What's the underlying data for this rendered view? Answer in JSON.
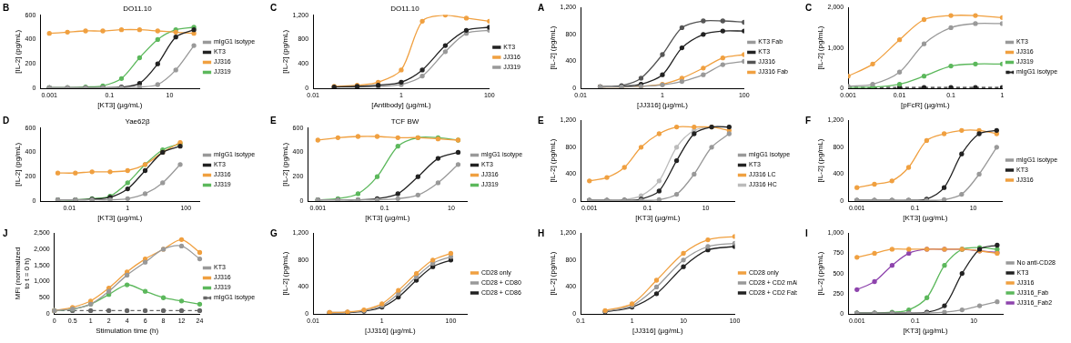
{
  "chart_data": [
    {
      "panel": "B",
      "type": "line",
      "title": "DO11.10",
      "log": "x",
      "grid": false,
      "legend": "right",
      "x_label": "[KT3] (µg/mL)",
      "y_label": "[IL-2] (pg/mL)",
      "x": [
        0.001,
        0.004,
        0.016,
        0.06,
        0.25,
        1,
        4,
        16,
        64
      ],
      "xlim": [
        0.0005,
        100
      ],
      "xticks": [
        0.001,
        0.1,
        10
      ],
      "ylim": [
        0,
        600
      ],
      "yticks": [
        0,
        200,
        400,
        600
      ],
      "series": [
        {
          "name": "mIgG1 isotype",
          "color": "#999999",
          "values": [
            5,
            5,
            5,
            5,
            5,
            10,
            30,
            150,
            350
          ]
        },
        {
          "name": "KT3",
          "color": "#222222",
          "values": [
            5,
            5,
            5,
            5,
            10,
            40,
            200,
            420,
            480
          ]
        },
        {
          "name": "JJ316",
          "color": "#f0a040",
          "values": [
            450,
            460,
            470,
            470,
            480,
            480,
            470,
            460,
            450
          ]
        },
        {
          "name": "JJ319",
          "color": "#5cb85c",
          "values": [
            5,
            5,
            10,
            20,
            80,
            250,
            400,
            480,
            500
          ]
        }
      ]
    },
    {
      "panel": "C",
      "type": "line",
      "title": "DO11.10",
      "log": "x",
      "grid": false,
      "legend": "right",
      "x_label": "[Antibody] (µg/mL)",
      "y_label": "[IL-2] (pg/mL)",
      "x": [
        0.03,
        0.1,
        0.3,
        1,
        3,
        10,
        30,
        100
      ],
      "xlim": [
        0.01,
        100
      ],
      "xticks": [
        0.01,
        1,
        100
      ],
      "ylim": [
        0,
        1200
      ],
      "yticks": [
        0,
        400,
        800,
        1200
      ],
      "series": [
        {
          "name": "KT3",
          "color": "#222222",
          "values": [
            20,
            30,
            50,
            100,
            300,
            700,
            950,
            1000
          ]
        },
        {
          "name": "JJ316",
          "color": "#f0a040",
          "values": [
            30,
            50,
            100,
            300,
            1100,
            1200,
            1150,
            1100
          ]
        },
        {
          "name": "JJ319",
          "color": "#999999",
          "values": [
            20,
            20,
            30,
            60,
            200,
            600,
            900,
            950
          ]
        }
      ]
    },
    {
      "panel": "A",
      "type": "line",
      "log": "x",
      "grid": false,
      "legend": "right",
      "x_label": "[JJ316] (µg/mL)",
      "y_label": "[IL-2] (pg/mL)",
      "x": [
        0.03,
        0.1,
        0.3,
        1,
        3,
        10,
        30,
        100
      ],
      "xlim": [
        0.01,
        100
      ],
      "xticks": [
        0.01,
        1,
        100
      ],
      "ylim": [
        0,
        1200
      ],
      "yticks": [
        0,
        400,
        800,
        1200
      ],
      "series": [
        {
          "name": "KT3 Fab",
          "color": "#999999",
          "values": [
            20,
            20,
            30,
            50,
            100,
            200,
            350,
            400
          ]
        },
        {
          "name": "KT3",
          "color": "#222222",
          "values": [
            20,
            30,
            60,
            200,
            600,
            800,
            850,
            850
          ]
        },
        {
          "name": "JJ316",
          "color": "#555555",
          "values": [
            20,
            40,
            150,
            500,
            900,
            1000,
            1000,
            980
          ]
        },
        {
          "name": "JJ316 Fab",
          "color": "#f0a040",
          "values": [
            20,
            20,
            30,
            60,
            150,
            300,
            450,
            500
          ]
        }
      ]
    },
    {
      "panel": "C",
      "type": "line",
      "log": "x",
      "grid": false,
      "legend": "right",
      "x_label": "[pFcR] (µg/mL)",
      "y_label": "[IL-2] (pg/mL)",
      "x": [
        0.001,
        0.003,
        0.01,
        0.03,
        0.1,
        0.3,
        1
      ],
      "xlim": [
        0.001,
        1
      ],
      "xticks": [
        0.001,
        0.01,
        0.1,
        1
      ],
      "ylim": [
        0,
        2000
      ],
      "yticks": [
        0,
        1000,
        2000
      ],
      "series": [
        {
          "name": "KT3",
          "color": "#999999",
          "values": [
            50,
            100,
            400,
            1100,
            1500,
            1600,
            1600
          ]
        },
        {
          "name": "JJ316",
          "color": "#f0a040",
          "values": [
            300,
            600,
            1200,
            1700,
            1800,
            1800,
            1750
          ]
        },
        {
          "name": "JJ319",
          "color": "#5cb85c",
          "values": [
            20,
            30,
            100,
            300,
            550,
            600,
            600
          ]
        },
        {
          "name": "mIgG1 isotype",
          "color": "#222222",
          "line_style": "dashed",
          "values": [
            20,
            20,
            20,
            20,
            20,
            20,
            20
          ]
        }
      ]
    },
    {
      "panel": "D",
      "type": "line",
      "title": "Yae62β",
      "log": "x",
      "grid": false,
      "legend": "right",
      "x_label": "[KT3] (µg/mL)",
      "y_label": "[IL-2] (pg/mL)",
      "x": [
        0.004,
        0.016,
        0.06,
        0.25,
        1,
        4,
        16,
        64
      ],
      "xlim": [
        0.001,
        300
      ],
      "xticks": [
        0.01,
        1,
        100
      ],
      "ylim": [
        0,
        600
      ],
      "yticks": [
        0,
        200,
        400,
        600
      ],
      "series": [
        {
          "name": "mIgG1 isotype",
          "color": "#999999",
          "values": [
            10,
            10,
            10,
            10,
            20,
            60,
            150,
            300
          ]
        },
        {
          "name": "KT3",
          "color": "#222222",
          "values": [
            10,
            10,
            15,
            30,
            100,
            250,
            400,
            450
          ]
        },
        {
          "name": "JJ316",
          "color": "#f0a040",
          "values": [
            230,
            230,
            240,
            240,
            250,
            300,
            400,
            480
          ]
        },
        {
          "name": "JJ319",
          "color": "#5cb85c",
          "values": [
            10,
            10,
            20,
            40,
            150,
            300,
            420,
            470
          ]
        }
      ]
    },
    {
      "panel": "E",
      "type": "line",
      "title": "TCF BW",
      "log": "x",
      "grid": false,
      "legend": "right",
      "x_label": "[KT3] (µg/mL)",
      "y_label": "[IL-2] (pg/mL)",
      "x": [
        0.001,
        0.004,
        0.016,
        0.06,
        0.25,
        1,
        4,
        16
      ],
      "xlim": [
        0.0005,
        30
      ],
      "xticks": [
        0.001,
        0.1,
        10
      ],
      "ylim": [
        0,
        600
      ],
      "yticks": [
        0,
        200,
        400,
        600
      ],
      "series": [
        {
          "name": "mIgG1 isotype",
          "color": "#999999",
          "values": [
            10,
            10,
            10,
            10,
            20,
            50,
            150,
            300
          ]
        },
        {
          "name": "KT3",
          "color": "#222222",
          "values": [
            10,
            10,
            10,
            20,
            60,
            200,
            350,
            400
          ]
        },
        {
          "name": "JJ316",
          "color": "#f0a040",
          "values": [
            500,
            520,
            530,
            530,
            520,
            520,
            510,
            500
          ]
        },
        {
          "name": "JJ319",
          "color": "#5cb85c",
          "values": [
            10,
            20,
            60,
            200,
            450,
            520,
            520,
            500
          ]
        }
      ]
    },
    {
      "panel": "E",
      "type": "line",
      "log": "x",
      "grid": false,
      "legend": "right",
      "x_label": "[KT3] (µg/mL)",
      "y_label": "[IL-2] (pg/mL)",
      "x": [
        0.001,
        0.004,
        0.016,
        0.06,
        0.25,
        1,
        4,
        16,
        64
      ],
      "xlim": [
        0.0005,
        100
      ],
      "xticks": [
        0.001,
        0.1,
        10
      ],
      "ylim": [
        0,
        1200
      ],
      "yticks": [
        0,
        400,
        800,
        1200
      ],
      "series": [
        {
          "name": "mIgG1 isotype",
          "color": "#999999",
          "values": [
            10,
            10,
            10,
            10,
            20,
            100,
            400,
            800,
            1000
          ]
        },
        {
          "name": "KT3",
          "color": "#222222",
          "values": [
            10,
            10,
            10,
            30,
            150,
            600,
            1000,
            1100,
            1100
          ]
        },
        {
          "name": "JJ316 LC",
          "color": "#f0a040",
          "values": [
            300,
            350,
            500,
            800,
            1000,
            1100,
            1100,
            1100,
            1050
          ]
        },
        {
          "name": "JJ316 HC",
          "color": "#bbbbbb",
          "values": [
            10,
            10,
            20,
            80,
            300,
            800,
            1050,
            1100,
            1100
          ]
        }
      ]
    },
    {
      "panel": "F",
      "type": "line",
      "log": "x",
      "grid": false,
      "legend": "right",
      "x_label": "[KT3] (µg/mL)",
      "y_label": "[IL-2] (pg/mL)",
      "x": [
        0.001,
        0.004,
        0.016,
        0.06,
        0.25,
        1,
        4,
        16,
        64
      ],
      "xlim": [
        0.0005,
        100
      ],
      "xticks": [
        0.001,
        0.1,
        10
      ],
      "ylim": [
        0,
        1200
      ],
      "yticks": [
        0,
        400,
        800,
        1200
      ],
      "series": [
        {
          "name": "mIgG1 isotype",
          "color": "#999999",
          "values": [
            10,
            10,
            10,
            10,
            10,
            20,
            100,
            400,
            800
          ]
        },
        {
          "name": "KT3",
          "color": "#222222",
          "values": [
            10,
            10,
            10,
            10,
            30,
            200,
            700,
            1000,
            1050
          ]
        },
        {
          "name": "JJ316",
          "color": "#f0a040",
          "values": [
            200,
            250,
            300,
            500,
            900,
            1000,
            1050,
            1050,
            1000
          ]
        }
      ]
    },
    {
      "panel": "J",
      "type": "line",
      "grid": false,
      "legend": "right",
      "x_label": "Stimulation time (h)",
      "y_label": "MFI (normalized to t = 0 h)",
      "categories": [
        "0",
        "0.5",
        "1",
        "2",
        "4",
        "6",
        "8",
        "12",
        "24"
      ],
      "ylim": [
        0,
        2500
      ],
      "yticks": [
        0,
        500,
        1000,
        1500,
        2000,
        2500
      ],
      "series": [
        {
          "name": "KT3",
          "color": "#999999",
          "values": [
            100,
            150,
            300,
            700,
            1200,
            1600,
            2000,
            2100,
            1700
          ]
        },
        {
          "name": "JJ316",
          "color": "#f0a040",
          "values": [
            100,
            200,
            400,
            800,
            1300,
            1700,
            2000,
            2300,
            1900
          ]
        },
        {
          "name": "JJ319",
          "color": "#5cb85c",
          "values": [
            100,
            150,
            300,
            600,
            900,
            700,
            500,
            400,
            300
          ]
        },
        {
          "name": "mIgG1 isotype",
          "color": "#666666",
          "line_style": "dashed",
          "values": [
            100,
            100,
            100,
            100,
            100,
            100,
            100,
            100,
            100
          ]
        }
      ]
    },
    {
      "panel": "G",
      "type": "line",
      "log": "x",
      "grid": false,
      "legend": "right",
      "x_label": "[JJ316] (µg/mL)",
      "y_label": "[IL-2] (pg/mL)",
      "x": [
        0.03,
        0.1,
        0.3,
        1,
        3,
        10,
        30,
        100
      ],
      "xlim": [
        0.01,
        300
      ],
      "xticks": [
        0.01,
        1,
        100
      ],
      "ylim": [
        0,
        1200
      ],
      "yticks": [
        0,
        400,
        800,
        1200
      ],
      "series": [
        {
          "name": "CD28 only",
          "color": "#f0a040",
          "values": [
            20,
            30,
            60,
            150,
            350,
            600,
            800,
            900
          ]
        },
        {
          "name": "CD28 + CD80",
          "color": "#999999",
          "values": [
            20,
            25,
            50,
            120,
            300,
            550,
            750,
            850
          ]
        },
        {
          "name": "CD28 + CD86",
          "color": "#222222",
          "values": [
            15,
            20,
            40,
            100,
            250,
            500,
            700,
            800
          ]
        }
      ]
    },
    {
      "panel": "H",
      "type": "line",
      "log": "x",
      "grid": false,
      "legend": "right",
      "x_label": "[JJ316] (µg/mL)",
      "y_label": "[IL-2] (pg/mL)",
      "x": [
        0.3,
        1,
        3,
        10,
        30,
        100
      ],
      "xlim": [
        0.1,
        100
      ],
      "xticks": [
        0.1,
        1,
        10,
        100
      ],
      "ylim": [
        0,
        1200
      ],
      "yticks": [
        0,
        400,
        800,
        1200
      ],
      "series": [
        {
          "name": "CD28 only",
          "color": "#f0a040",
          "values": [
            50,
            150,
            500,
            900,
            1100,
            1150
          ]
        },
        {
          "name": "CD28 + CD2 mAb",
          "color": "#999999",
          "values": [
            40,
            120,
            400,
            800,
            1000,
            1050
          ]
        },
        {
          "name": "CD28 + CD2 Fab",
          "color": "#222222",
          "values": [
            30,
            100,
            300,
            700,
            950,
            1000
          ]
        }
      ]
    },
    {
      "panel": "I",
      "type": "line",
      "log": "x",
      "grid": false,
      "legend": "right",
      "x_label": "[KT3] (µg/mL)",
      "y_label": "[IL-2] (pg/mL)",
      "x": [
        0.001,
        0.004,
        0.016,
        0.06,
        0.25,
        1,
        4,
        16,
        64
      ],
      "xlim": [
        0.0005,
        100
      ],
      "xticks": [
        0.001,
        0.1,
        10
      ],
      "ylim": [
        0,
        1000
      ],
      "yticks": [
        0,
        250,
        500,
        750,
        1000
      ],
      "series": [
        {
          "name": "No anti-CD28",
          "color": "#999999",
          "values": [
            10,
            10,
            10,
            10,
            10,
            20,
            50,
            100,
            150
          ]
        },
        {
          "name": "KT3",
          "color": "#222222",
          "values": [
            10,
            10,
            10,
            10,
            20,
            100,
            500,
            800,
            850
          ]
        },
        {
          "name": "JJ316",
          "color": "#f0a040",
          "values": [
            700,
            750,
            800,
            800,
            800,
            800,
            800,
            780,
            750
          ]
        },
        {
          "name": "JJ316_Fab",
          "color": "#5cb85c",
          "values": [
            10,
            10,
            20,
            50,
            200,
            600,
            800,
            820,
            800
          ]
        },
        {
          "name": "JJ316_Fab2",
          "color": "#8e44ad",
          "values": [
            300,
            400,
            600,
            750,
            800,
            800,
            800,
            780,
            760
          ]
        }
      ]
    }
  ]
}
